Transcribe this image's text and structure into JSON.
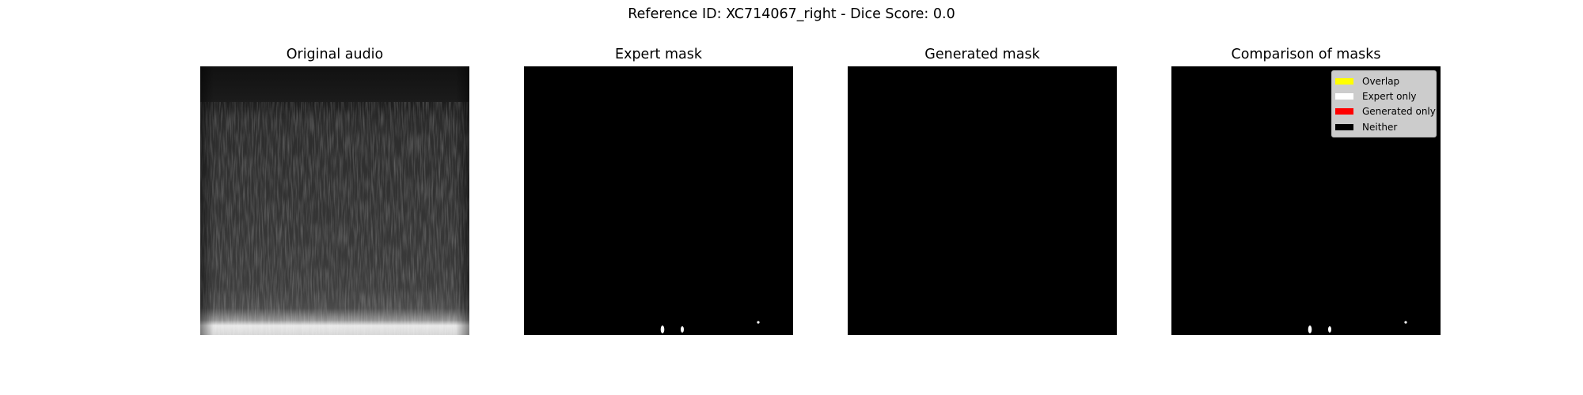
{
  "figure": {
    "suptitle": "Reference ID: XC714067_right - Dice Score: 0.0"
  },
  "chart_data": [
    {
      "type": "heatmap",
      "title": "Original audio",
      "content": "grayscale spectrogram",
      "axes": "off"
    },
    {
      "type": "heatmap",
      "title": "Expert mask",
      "content": "binary mask",
      "axes": "off"
    },
    {
      "type": "heatmap",
      "title": "Generated mask",
      "content": "binary mask",
      "axes": "off"
    },
    {
      "type": "heatmap",
      "title": "Comparison of masks",
      "content": "mask comparison",
      "axes": "off",
      "legend_position": "top-right",
      "legend": [
        {
          "label": "Overlap",
          "color": "#ffff00"
        },
        {
          "label": "Expert only",
          "color": "#ffffff"
        },
        {
          "label": "Generated only",
          "color": "#ff0000"
        },
        {
          "label": "Neither",
          "color": "#000000"
        }
      ]
    }
  ]
}
